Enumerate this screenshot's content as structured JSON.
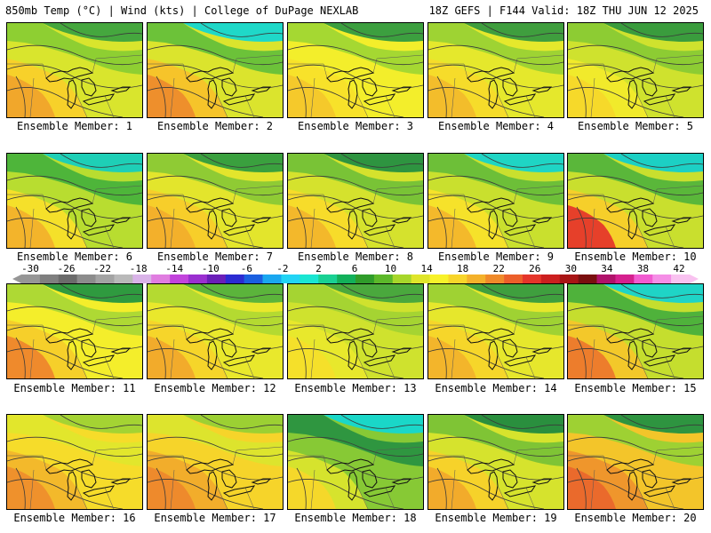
{
  "header": {
    "left": "850mb Temp (°C) | Wind (kts) | College of DuPage NEXLAB",
    "right": "18Z GEFS | F144 Valid: 18Z THU JUN 12 2025"
  },
  "colorbar": {
    "ticks": [
      "-30",
      "-26",
      "-22",
      "-18",
      "-14",
      "-10",
      "-6",
      "-2",
      "2",
      "6",
      "10",
      "14",
      "18",
      "22",
      "26",
      "30",
      "34",
      "38",
      "42"
    ],
    "colors": [
      "#969696",
      "#7f7f7f",
      "#6b6b6b",
      "#8c8c8c",
      "#a3a3a3",
      "#b9b9b9",
      "#d9b3e8",
      "#e07de0",
      "#c244dc",
      "#9a2fd0",
      "#6a1fb8",
      "#2b2bd2",
      "#1a5fe0",
      "#1aa7f0",
      "#22d4f5",
      "#1ae6d2",
      "#19d193",
      "#12b05a",
      "#2f9c2a",
      "#5cb82a",
      "#a7d62a",
      "#dfe52a",
      "#f8f22a",
      "#f8d52a",
      "#f4b12a",
      "#f08a2a",
      "#ec5f2a",
      "#e5352a",
      "#cc1f1f",
      "#a81515",
      "#7a0f0f",
      "#b0126a",
      "#d5208e",
      "#f15ad0",
      "#f58ee6",
      "#f9c2f0"
    ]
  },
  "panels": [
    {
      "label": "Ensemble Member: 1",
      "palette": [
        "#45a73e",
        "#8ecf32",
        "#d9e52d",
        "#f7d12a",
        "#f1a72b"
      ]
    },
    {
      "label": "Ensemble Member: 2",
      "palette": [
        "#1fd8c8",
        "#6cc239",
        "#dbe42d",
        "#f6c42a",
        "#ee8f2c"
      ]
    },
    {
      "label": "Ensemble Member: 3",
      "palette": [
        "#3c9f3f",
        "#a5d832",
        "#f3ee2b",
        "#f8e22a",
        "#f5c92b"
      ]
    },
    {
      "label": "Ensemble Member: 4",
      "palette": [
        "#3f9e3e",
        "#9ed333",
        "#e5e82c",
        "#f6dc2a",
        "#f3bd2b"
      ]
    },
    {
      "label": "Ensemble Member: 5",
      "palette": [
        "#3a9c3d",
        "#8dcc33",
        "#cfe22e",
        "#f1ea2b",
        "#f6d92a"
      ]
    },
    {
      "label": "Ensemble Member: 6",
      "palette": [
        "#1ecfb6",
        "#4eb53a",
        "#b8dd30",
        "#f5e02a",
        "#f3b42b"
      ]
    },
    {
      "label": "Ensemble Member: 7",
      "palette": [
        "#3aa03e",
        "#8fcb34",
        "#e3e52c",
        "#f7ce2a",
        "#f3b02b"
      ]
    },
    {
      "label": "Ensemble Member: 8",
      "palette": [
        "#2e9440",
        "#79c336",
        "#d5e22d",
        "#f7dc2a",
        "#f3b82b"
      ]
    },
    {
      "label": "Ensemble Member: 9",
      "palette": [
        "#1fd5c4",
        "#6dbf38",
        "#c9e02e",
        "#f6e22a",
        "#f4b92b"
      ]
    },
    {
      "label": "Ensemble Member: 10",
      "palette": [
        "#1cd0c4",
        "#5ab73a",
        "#c9df2e",
        "#f6cf2a",
        "#e6402a"
      ]
    },
    {
      "label": "Ensemble Member: 11",
      "palette": [
        "#2f9a3f",
        "#aed934",
        "#f4ee2b",
        "#f6cf2a",
        "#ef8a2c"
      ]
    },
    {
      "label": "Ensemble Member: 12",
      "palette": [
        "#5bb43b",
        "#b4da31",
        "#e9e82c",
        "#f6d52a",
        "#f2ab2b"
      ]
    },
    {
      "label": "Ensemble Member: 13",
      "palette": [
        "#4aa83d",
        "#a5d432",
        "#cfe22e",
        "#e8e82c",
        "#f5e02a"
      ]
    },
    {
      "label": "Ensemble Member: 14",
      "palette": [
        "#3f9f3e",
        "#9fd233",
        "#e6e72c",
        "#f6d62a",
        "#f3b52b"
      ]
    },
    {
      "label": "Ensemble Member: 15",
      "palette": [
        "#1fd4c6",
        "#4fb23b",
        "#c5de2e",
        "#f3c82a",
        "#ed7d2c"
      ]
    },
    {
      "label": "Ensemble Member: 16",
      "palette": [
        "#a4d333",
        "#e2e62c",
        "#f6dc2a",
        "#f3b92b",
        "#ef912c"
      ]
    },
    {
      "label": "Ensemble Member: 17",
      "palette": [
        "#9cd033",
        "#dde42d",
        "#f6d42a",
        "#f2ad2b",
        "#ee8a2c"
      ]
    },
    {
      "label": "Ensemble Member: 18",
      "palette": [
        "#1ad7c8",
        "#2f9640",
        "#87c935",
        "#d6e32d",
        "#f5d82a"
      ]
    },
    {
      "label": "Ensemble Member: 19",
      "palette": [
        "#2a8f3e",
        "#7fc435",
        "#d6e32d",
        "#f6d22a",
        "#f2ab2b"
      ]
    },
    {
      "label": "Ensemble Member: 20",
      "palette": [
        "#2e9440",
        "#9ed133",
        "#f3c52a",
        "#ef962c",
        "#ea6a2c"
      ]
    }
  ]
}
